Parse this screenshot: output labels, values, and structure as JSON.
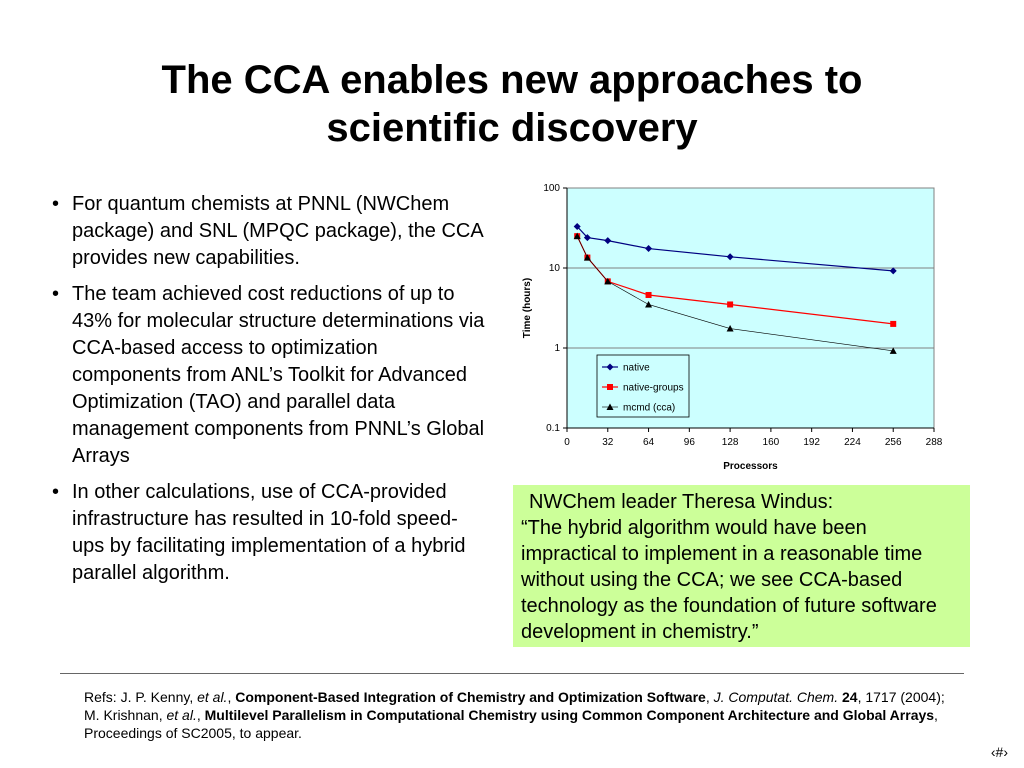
{
  "title": "The CCA enables new approaches to\nscientific discovery",
  "bullets": [
    "For quantum chemists at PNNL (NWChem package) and SNL (MPQC package), the CCA provides new capabilities.",
    "The team achieved cost reductions of up to 43% for molecular structure determinations via CCA-based access to optimization components from ANL’s Toolkit for Advanced Optimization (TAO) and parallel data management components from PNNL’s Global Arrays",
    "In other calculations, use of CCA-provided infrastructure has resulted in 10-fold speed-ups by facilitating implementation of a hybrid parallel algorithm."
  ],
  "bullet_glyph": "•",
  "quote": {
    "heading": "NWChem leader Theresa Windus:",
    "text": "“The hybrid algorithm would have been impractical to implement in a reasonable time without using the CCA; we see CCA-based technology as the foundation of future software development in chemistry.”"
  },
  "refs": {
    "prefix": "Refs: J. P. Kenny, ",
    "etal": "et al.",
    "comma": ", ",
    "paper1_title": "Component-Based Integration of Chemistry and Optimization Software",
    "journal": "J. Computat. Chem.",
    "volume": "24",
    "paper1_rest": ", 1717 (2004); M. Krishnan, ",
    "paper2_title": "Multilevel Parallelism in Computational Chemistry using Common Component Architecture and Global Arrays",
    "paper2_rest": ", Proceedings of SC2005, to appear."
  },
  "slide_number": "‹#›",
  "chart_data": {
    "type": "line",
    "title": "",
    "xlabel": "Processors",
    "ylabel": "Time (hours)",
    "xlim": [
      0,
      288
    ],
    "ylim": [
      0.1,
      100
    ],
    "yscale": "log",
    "x_ticks": [
      0,
      32,
      64,
      96,
      128,
      160,
      192,
      224,
      256,
      288
    ],
    "y_ticks": [
      0.1,
      1,
      10,
      100
    ],
    "y_tick_labels": [
      "0.1",
      "1",
      "10",
      "100"
    ],
    "grid": "horizontal",
    "background": "#ccffff",
    "legend_position": "inside-center-bottom",
    "series": [
      {
        "name": "native",
        "color": "#000080",
        "marker": "diamond",
        "x": [
          8,
          16,
          32,
          64,
          128,
          256
        ],
        "y": [
          33,
          24,
          22,
          17.5,
          13.8,
          9.2
        ]
      },
      {
        "name": "native-groups",
        "color": "#ff0000",
        "marker": "square",
        "x": [
          8,
          16,
          32,
          64,
          128,
          256
        ],
        "y": [
          25,
          13.5,
          6.8,
          4.6,
          3.5,
          2.0
        ]
      },
      {
        "name": "mcmd (cca)",
        "color": "#000000",
        "marker": "triangle",
        "x": [
          8,
          16,
          32,
          64,
          128,
          256
        ],
        "y": [
          25,
          13.5,
          6.8,
          3.5,
          1.75,
          0.92
        ]
      }
    ]
  }
}
